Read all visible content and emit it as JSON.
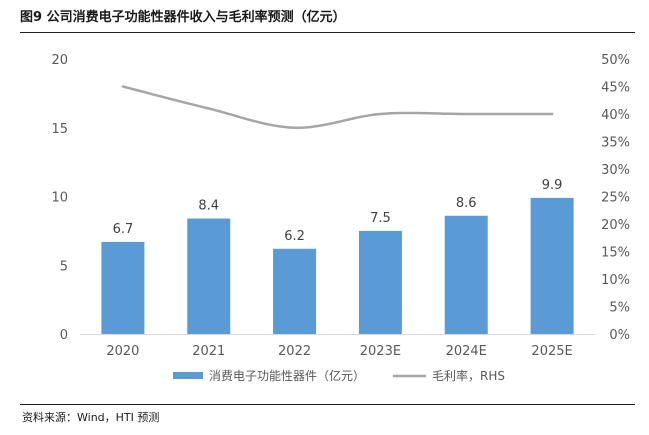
{
  "figure": {
    "title": "图9  公司消费电子功能性器件收入与毛利率预测（亿元）",
    "source": "资料来源：Wind，HTI 预测"
  },
  "chart_data": {
    "type": "bar",
    "categories": [
      "2020",
      "2021",
      "2022",
      "2023E",
      "2024E",
      "2025E"
    ],
    "series": [
      {
        "name": "消费电子功能性器件（亿元）",
        "type": "bar",
        "axis": "left",
        "color": "#5b9bd5",
        "values": [
          6.7,
          8.4,
          6.2,
          7.5,
          8.6,
          9.9
        ],
        "data_labels": [
          "6.7",
          "8.4",
          "6.2",
          "7.5",
          "8.6",
          "9.9"
        ]
      },
      {
        "name": "毛利率，RHS",
        "type": "line",
        "axis": "right",
        "color": "#a6a6a6",
        "values": [
          45,
          41,
          37.5,
          40,
          40,
          40
        ]
      }
    ],
    "left_axis": {
      "ylim": [
        0,
        20
      ],
      "ticks": [
        "0",
        "5",
        "10",
        "15",
        "20"
      ]
    },
    "right_axis": {
      "ylim": [
        0,
        50
      ],
      "ticks": [
        "0%",
        "5%",
        "10%",
        "15%",
        "20%",
        "25%",
        "30%",
        "35%",
        "40%",
        "45%",
        "50%"
      ]
    },
    "grid": false,
    "legend": "bottom"
  }
}
